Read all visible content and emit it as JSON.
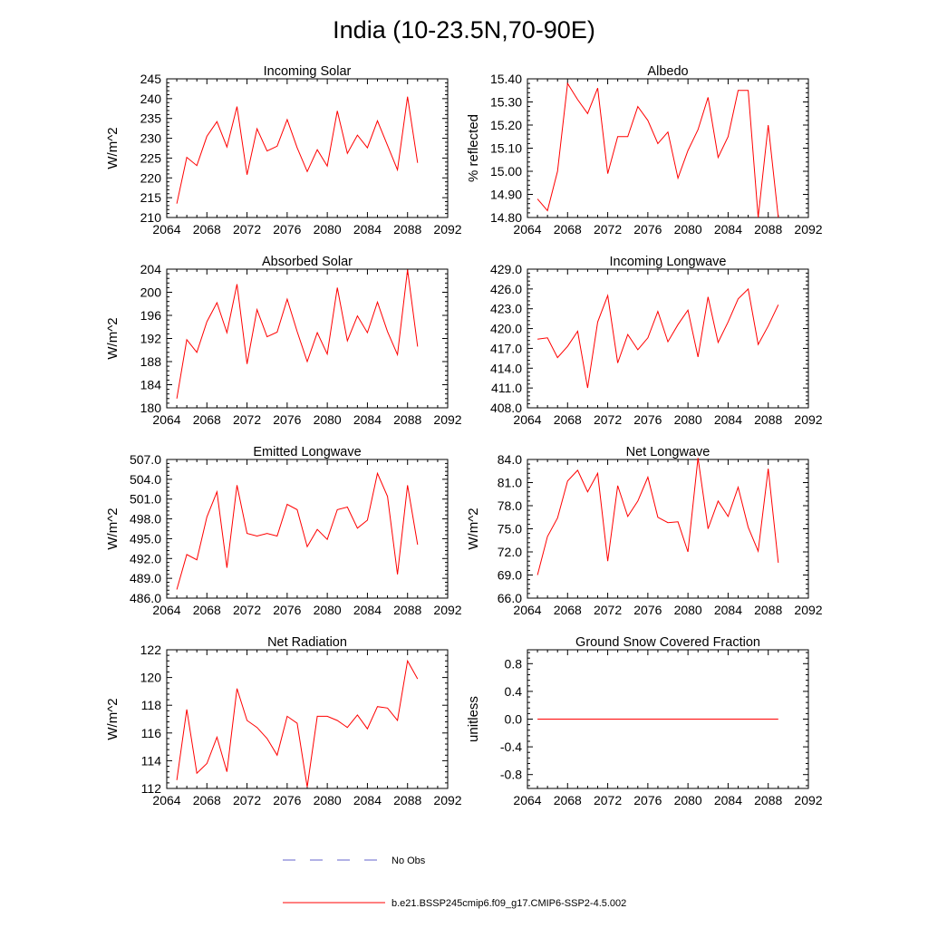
{
  "page_title": "India (10-23.5N,70-90E)",
  "colors": {
    "series": "#ff0000",
    "obs": "#6666cc",
    "axis": "#000000"
  },
  "legend": {
    "obs_label": "No Obs",
    "model_label": "b.e21.BSSP245cmip6.f09_g17.CMIP6-SSP2-4.5.002"
  },
  "chart_data": [
    {
      "type": "line",
      "title": "Incoming Solar",
      "ylabel": "W/m^2",
      "xlabel": "",
      "xlim": [
        2064,
        2092
      ],
      "ylim": [
        210,
        245
      ],
      "xticks": [
        2064,
        2068,
        2072,
        2076,
        2080,
        2084,
        2088,
        2092
      ],
      "yticks": [
        210,
        215,
        220,
        225,
        230,
        235,
        240,
        245
      ],
      "ytick_labels": [
        "210",
        "215",
        "220",
        "225",
        "230",
        "235",
        "240",
        "245"
      ],
      "x": [
        2065,
        2066,
        2067,
        2068,
        2069,
        2070,
        2071,
        2072,
        2073,
        2074,
        2075,
        2076,
        2077,
        2078,
        2079,
        2080,
        2081,
        2082,
        2083,
        2084,
        2085,
        2086,
        2087,
        2088,
        2089
      ],
      "series": [
        {
          "name": "b.e21.BSSP245cmip6.f09_g17.CMIP6-SSP2-4.5.002",
          "values": [
            213.5,
            225.2,
            223.1,
            230.5,
            234.2,
            227.8,
            238.0,
            220.8,
            232.4,
            226.8,
            228.0,
            234.7,
            227.6,
            221.6,
            227.1,
            223.0,
            236.9,
            226.2,
            230.8,
            227.6,
            234.4,
            228.2,
            222.0,
            240.5,
            223.8
          ]
        }
      ]
    },
    {
      "type": "line",
      "title": "Albedo",
      "ylabel": "% reflected",
      "xlabel": "",
      "xlim": [
        2064,
        2092
      ],
      "ylim": [
        14.8,
        15.4
      ],
      "xticks": [
        2064,
        2068,
        2072,
        2076,
        2080,
        2084,
        2088,
        2092
      ],
      "yticks": [
        14.8,
        14.9,
        15.0,
        15.1,
        15.2,
        15.3,
        15.4
      ],
      "ytick_labels": [
        "14.80",
        "14.90",
        "15.00",
        "15.10",
        "15.20",
        "15.30",
        "15.40"
      ],
      "x": [
        2065,
        2066,
        2067,
        2068,
        2069,
        2070,
        2071,
        2072,
        2073,
        2074,
        2075,
        2076,
        2077,
        2078,
        2079,
        2080,
        2081,
        2082,
        2083,
        2084,
        2085,
        2086,
        2087,
        2088,
        2089
      ],
      "series": [
        {
          "name": "b.e21.BSSP245cmip6.f09_g17.CMIP6-SSP2-4.5.002",
          "values": [
            14.88,
            14.83,
            15.0,
            15.38,
            15.31,
            15.25,
            15.36,
            14.99,
            15.15,
            15.15,
            15.28,
            15.22,
            15.12,
            15.17,
            14.97,
            15.09,
            15.18,
            15.32,
            15.06,
            15.15,
            15.35,
            15.35,
            14.8,
            15.2,
            14.8
          ]
        }
      ]
    },
    {
      "type": "line",
      "title": "Absorbed Solar",
      "ylabel": "W/m^2",
      "xlabel": "",
      "xlim": [
        2064,
        2092
      ],
      "ylim": [
        180,
        204
      ],
      "xticks": [
        2064,
        2068,
        2072,
        2076,
        2080,
        2084,
        2088,
        2092
      ],
      "yticks": [
        180,
        184,
        188,
        192,
        196,
        200,
        204
      ],
      "ytick_labels": [
        "180",
        "184",
        "188",
        "192",
        "196",
        "200",
        "204"
      ],
      "x": [
        2065,
        2066,
        2067,
        2068,
        2069,
        2070,
        2071,
        2072,
        2073,
        2074,
        2075,
        2076,
        2077,
        2078,
        2079,
        2080,
        2081,
        2082,
        2083,
        2084,
        2085,
        2086,
        2087,
        2088,
        2089
      ],
      "series": [
        {
          "name": "b.e21.BSSP245cmip6.f09_g17.CMIP6-SSP2-4.5.002",
          "values": [
            181.6,
            191.8,
            189.6,
            194.9,
            198.2,
            193.0,
            201.4,
            187.6,
            197.0,
            192.3,
            193.1,
            198.8,
            193.2,
            188.0,
            193.0,
            189.3,
            200.8,
            191.6,
            195.9,
            193.0,
            198.3,
            193.2,
            189.2,
            203.9,
            190.6
          ]
        }
      ]
    },
    {
      "type": "line",
      "title": "Incoming Longwave",
      "ylabel": "",
      "xlabel": "",
      "xlim": [
        2064,
        2092
      ],
      "ylim": [
        408,
        429
      ],
      "xticks": [
        2064,
        2068,
        2072,
        2076,
        2080,
        2084,
        2088,
        2092
      ],
      "yticks": [
        408,
        411,
        414,
        417,
        420,
        423,
        426,
        429
      ],
      "ytick_labels": [
        "408.0",
        "411.0",
        "414.0",
        "417.0",
        "420.0",
        "423.0",
        "426.0",
        "429.0"
      ],
      "x": [
        2065,
        2066,
        2067,
        2068,
        2069,
        2070,
        2071,
        2072,
        2073,
        2074,
        2075,
        2076,
        2077,
        2078,
        2079,
        2080,
        2081,
        2082,
        2083,
        2084,
        2085,
        2086,
        2087,
        2088,
        2089
      ],
      "series": [
        {
          "name": "b.e21.BSSP245cmip6.f09_g17.CMIP6-SSP2-4.5.002",
          "values": [
            418.4,
            418.6,
            415.6,
            417.3,
            419.6,
            411.0,
            421.0,
            425.0,
            414.8,
            419.1,
            416.8,
            418.6,
            422.6,
            418.0,
            420.6,
            422.8,
            415.7,
            424.8,
            417.9,
            421.0,
            424.5,
            426.0,
            417.6,
            420.4,
            423.6
          ]
        }
      ]
    },
    {
      "type": "line",
      "title": "Emitted Longwave",
      "ylabel": "W/m^2",
      "xlabel": "",
      "xlim": [
        2064,
        2092
      ],
      "ylim": [
        486,
        507
      ],
      "xticks": [
        2064,
        2068,
        2072,
        2076,
        2080,
        2084,
        2088,
        2092
      ],
      "yticks": [
        486,
        489,
        492,
        495,
        498,
        501,
        504,
        507
      ],
      "ytick_labels": [
        "486.0",
        "489.0",
        "492.0",
        "495.0",
        "498.0",
        "501.0",
        "504.0",
        "507.0"
      ],
      "x": [
        2065,
        2066,
        2067,
        2068,
        2069,
        2070,
        2071,
        2072,
        2073,
        2074,
        2075,
        2076,
        2077,
        2078,
        2079,
        2080,
        2081,
        2082,
        2083,
        2084,
        2085,
        2086,
        2087,
        2088,
        2089
      ],
      "series": [
        {
          "name": "b.e21.BSSP245cmip6.f09_g17.CMIP6-SSP2-4.5.002",
          "values": [
            487.3,
            492.6,
            491.8,
            498.3,
            502.1,
            490.6,
            503.1,
            495.8,
            495.4,
            495.8,
            495.4,
            500.2,
            499.4,
            493.8,
            496.4,
            494.9,
            499.4,
            499.8,
            496.6,
            497.8,
            504.9,
            501.4,
            489.6,
            503.1,
            494.1
          ]
        }
      ]
    },
    {
      "type": "line",
      "title": "Net Longwave",
      "ylabel": "W/m^2",
      "xlabel": "",
      "xlim": [
        2064,
        2092
      ],
      "ylim": [
        66,
        84
      ],
      "xticks": [
        2064,
        2068,
        2072,
        2076,
        2080,
        2084,
        2088,
        2092
      ],
      "yticks": [
        66,
        69,
        72,
        75,
        78,
        81,
        84
      ],
      "ytick_labels": [
        "66.0",
        "69.0",
        "72.0",
        "75.0",
        "78.0",
        "81.0",
        "84.0"
      ],
      "x": [
        2065,
        2066,
        2067,
        2068,
        2069,
        2070,
        2071,
        2072,
        2073,
        2074,
        2075,
        2076,
        2077,
        2078,
        2079,
        2080,
        2081,
        2082,
        2083,
        2084,
        2085,
        2086,
        2087,
        2088,
        2089
      ],
      "series": [
        {
          "name": "b.e21.BSSP245cmip6.f09_g17.CMIP6-SSP2-4.5.002",
          "values": [
            69.0,
            74.0,
            76.4,
            81.2,
            82.6,
            79.8,
            82.2,
            70.8,
            80.6,
            76.6,
            78.6,
            81.7,
            76.5,
            75.8,
            75.9,
            72.0,
            84.2,
            75.0,
            78.6,
            76.6,
            80.4,
            75.2,
            72.1,
            82.8,
            70.6
          ]
        }
      ]
    },
    {
      "type": "line",
      "title": "Net Radiation",
      "ylabel": "W/m^2",
      "xlabel": "",
      "xlim": [
        2064,
        2092
      ],
      "ylim": [
        112,
        122
      ],
      "xticks": [
        2064,
        2068,
        2072,
        2076,
        2080,
        2084,
        2088,
        2092
      ],
      "yticks": [
        112,
        114,
        116,
        118,
        120,
        122
      ],
      "ytick_labels": [
        "112",
        "114",
        "116",
        "118",
        "120",
        "122"
      ],
      "x": [
        2065,
        2066,
        2067,
        2068,
        2069,
        2070,
        2071,
        2072,
        2073,
        2074,
        2075,
        2076,
        2077,
        2078,
        2079,
        2080,
        2081,
        2082,
        2083,
        2084,
        2085,
        2086,
        2087,
        2088,
        2089
      ],
      "series": [
        {
          "name": "b.e21.BSSP245cmip6.f09_g17.CMIP6-SSP2-4.5.002",
          "values": [
            112.6,
            117.7,
            113.1,
            113.8,
            115.7,
            113.2,
            119.2,
            116.9,
            116.4,
            115.6,
            114.4,
            117.2,
            116.7,
            112.1,
            117.2,
            117.2,
            116.9,
            116.4,
            117.3,
            116.3,
            117.9,
            117.8,
            116.9,
            121.2,
            119.9
          ]
        }
      ]
    },
    {
      "type": "line",
      "title": "Ground Snow Covered Fraction",
      "ylabel": "unitless",
      "xlabel": "",
      "xlim": [
        2064,
        2092
      ],
      "ylim": [
        -1.0,
        1.0
      ],
      "xticks": [
        2064,
        2068,
        2072,
        2076,
        2080,
        2084,
        2088,
        2092
      ],
      "yticks": [
        -0.8,
        -0.4,
        0.0,
        0.4,
        0.8
      ],
      "ytick_labels": [
        "-0.8",
        "-0.4",
        "0.0",
        "0.4",
        "0.8"
      ],
      "x": [
        2065,
        2089
      ],
      "series": [
        {
          "name": "b.e21.BSSP245cmip6.f09_g17.CMIP6-SSP2-4.5.002",
          "values": [
            0.0,
            0.0
          ]
        }
      ]
    }
  ]
}
